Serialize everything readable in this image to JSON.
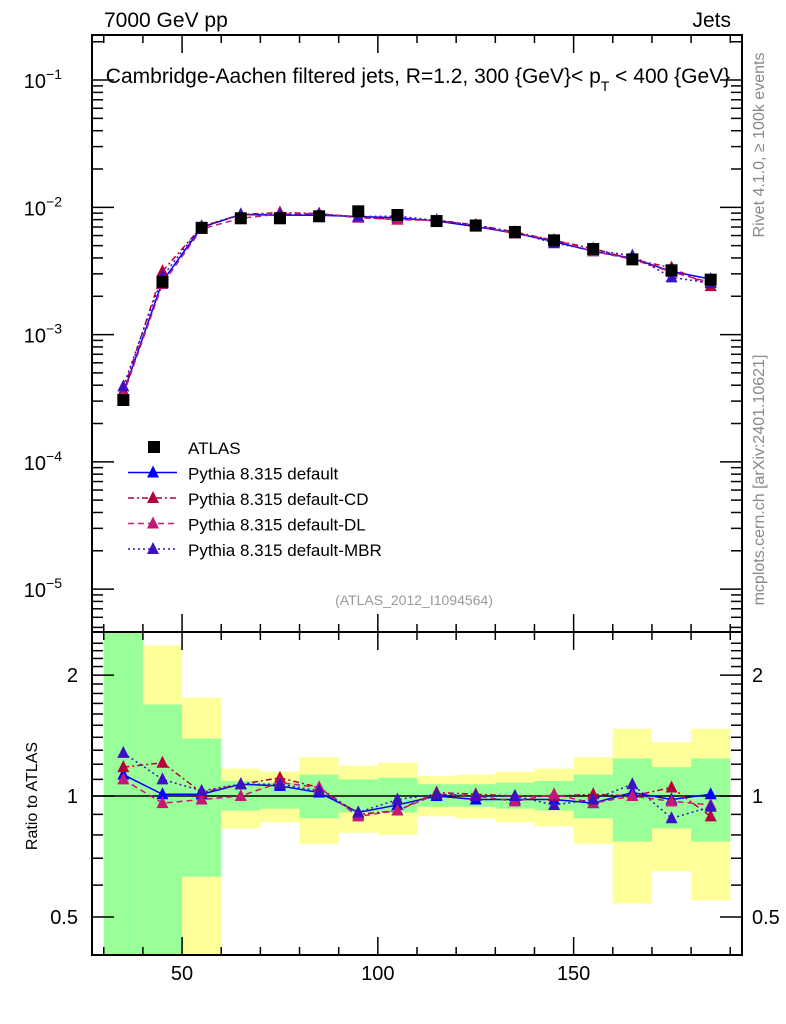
{
  "chart_data": [
    {
      "type": "scatter",
      "panel": "main",
      "header_left": "7000 GeV pp",
      "header_right": "Jets",
      "title": "Cambridge-Aachen filtered jets, R=1.2, 300 {GeV}< p_T < 400 {GeV}",
      "title_main": "Cambridge-Aachen filtered jets, R=1.2, 300 {GeV}< p",
      "title_sub": "T",
      "title_tail": " < 400 {GeV}",
      "analysis_label": "(ATLAS_2012_I1094564)",
      "side_label_top": "Rivet 4.1.0, ≥ 100k events",
      "side_label_bottom": "mcplots.cern.ch [arXiv:2401.10621]",
      "yscale": "log",
      "ylim": [
        4.6e-06,
        0.226
      ],
      "xlim": [
        27,
        193
      ],
      "ytick_labels": [
        {
          "value": 0.1,
          "base": "10",
          "exp": "−1"
        },
        {
          "value": 0.01,
          "base": "10",
          "exp": "−2"
        },
        {
          "value": 0.001,
          "base": "10",
          "exp": "−3"
        },
        {
          "value": 0.0001,
          "base": "10",
          "exp": "−4"
        },
        {
          "value": 1e-05,
          "base": "10",
          "exp": "−5"
        }
      ],
      "x": [
        35,
        45,
        55,
        65,
        75,
        85,
        95,
        105,
        115,
        125,
        135,
        145,
        155,
        165,
        175,
        185
      ],
      "bin_width": 10,
      "atlas": [
        0.000306,
        0.0026,
        0.0069,
        0.0082,
        0.0082,
        0.0085,
        0.0093,
        0.0087,
        0.0078,
        0.0072,
        0.0064,
        0.0055,
        0.0047,
        0.0039,
        0.0032,
        0.0027
      ],
      "legend_placement": "center-left",
      "legend": [
        {
          "key": "atlas",
          "label": "ATLAS"
        },
        {
          "key": "default",
          "label": "Pythia 8.315 default"
        },
        {
          "key": "cd",
          "label": "Pythia 8.315 default-CD"
        },
        {
          "key": "dl",
          "label": "Pythia 8.315 default-DL"
        },
        {
          "key": "mbr",
          "label": "Pythia 8.315 default-MBR"
        }
      ]
    },
    {
      "type": "line",
      "panel": "ratio",
      "ylabel": "Ratio to ATLAS",
      "yscale": "log",
      "ylim": [
        0.402,
        2.56
      ],
      "xlim": [
        27,
        193
      ],
      "ytick_labels": [
        {
          "value": 2,
          "label": "2"
        },
        {
          "value": 1,
          "label": "1"
        },
        {
          "value": 0.5,
          "label": "0.5"
        }
      ],
      "xtick_labels": [
        {
          "value": 50,
          "label": "50"
        },
        {
          "value": 100,
          "label": "100"
        },
        {
          "value": 150,
          "label": "150"
        }
      ],
      "x": [
        35,
        45,
        55,
        65,
        75,
        85,
        95,
        105,
        115,
        125,
        135,
        145,
        155,
        165,
        175,
        185
      ],
      "bands": {
        "stat_green": {
          "lo": [
            0.4,
            0.4,
            0.63,
            0.92,
            0.93,
            0.88,
            0.91,
            0.91,
            0.94,
            0.94,
            0.93,
            0.92,
            0.88,
            0.77,
            0.83,
            0.77
          ],
          "hi": [
            2.56,
            1.69,
            1.39,
            1.09,
            1.08,
            1.13,
            1.1,
            1.11,
            1.07,
            1.07,
            1.08,
            1.09,
            1.13,
            1.24,
            1.18,
            1.24
          ]
        },
        "total_yellow": {
          "lo": [
            0.4,
            0.4,
            0.4,
            0.83,
            0.86,
            0.76,
            0.81,
            0.8,
            0.89,
            0.88,
            0.86,
            0.84,
            0.76,
            0.54,
            0.65,
            0.55
          ],
          "hi": [
            2.56,
            2.37,
            1.76,
            1.17,
            1.15,
            1.25,
            1.19,
            1.21,
            1.12,
            1.13,
            1.15,
            1.17,
            1.25,
            1.47,
            1.36,
            1.47
          ]
        }
      },
      "series": [
        {
          "key": "default",
          "name": "Pythia 8.315 default",
          "color": "#0000ff",
          "dash": "",
          "values": [
            1.13,
            1.01,
            1.01,
            1.07,
            1.06,
            1.02,
            0.91,
            0.95,
            1.0,
            0.98,
            0.98,
            0.98,
            0.96,
            1.02,
            0.98,
            1.01
          ]
        },
        {
          "key": "cd",
          "name": "Pythia 8.315 default-CD",
          "color": "#b8003c",
          "dash": "6,3,2,3",
          "values": [
            1.18,
            1.21,
            1.02,
            1.07,
            1.11,
            1.05,
            0.9,
            0.92,
            1.02,
            1.01,
            1.0,
            1.0,
            1.01,
            1.0,
            1.05,
            0.89
          ]
        },
        {
          "key": "dl",
          "name": "Pythia 8.315 default-DL",
          "color": "#c41878",
          "dash": "6,4",
          "values": [
            1.1,
            0.96,
            0.98,
            1.0,
            1.08,
            1.05,
            0.89,
            0.92,
            1.01,
            1.0,
            0.97,
            1.01,
            0.96,
            1.0,
            0.97,
            0.95
          ]
        },
        {
          "key": "mbr",
          "name": "Pythia 8.315 default-MBR",
          "color": "#3c10c4",
          "dash": "2,3",
          "values": [
            1.28,
            1.1,
            1.03,
            1.07,
            1.07,
            1.03,
            0.91,
            0.98,
            1.01,
            1.0,
            1.0,
            0.95,
            0.98,
            1.07,
            0.88,
            0.94
          ]
        }
      ]
    }
  ]
}
